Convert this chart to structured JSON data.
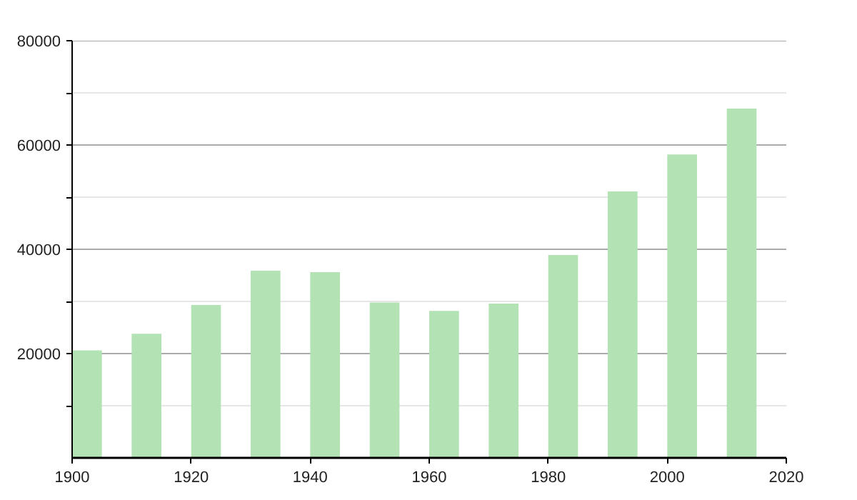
{
  "chart_data": {
    "type": "bar",
    "x": [
      1902.5,
      1912.5,
      1922.5,
      1932.5,
      1942.5,
      1952.5,
      1962.5,
      1972.5,
      1982.5,
      1992.5,
      2002.5,
      2012.5
    ],
    "values": [
      20600,
      23800,
      29300,
      35900,
      35600,
      29800,
      28200,
      29600,
      38900,
      51100,
      58200,
      67000
    ],
    "color": "#b3e3b5",
    "xlim": [
      1900,
      2020
    ],
    "xticks": [
      1900,
      1920,
      1940,
      1960,
      1980,
      2000,
      2020
    ],
    "ylim": [
      0,
      80000
    ],
    "yticks": [
      {
        "value": 10000,
        "label": null
      },
      20000,
      {
        "value": 30000,
        "label": null
      },
      40000,
      {
        "value": 50000,
        "label": null
      },
      60000,
      {
        "value": 70000,
        "label": null
      },
      80000
    ],
    "grid": "y"
  }
}
